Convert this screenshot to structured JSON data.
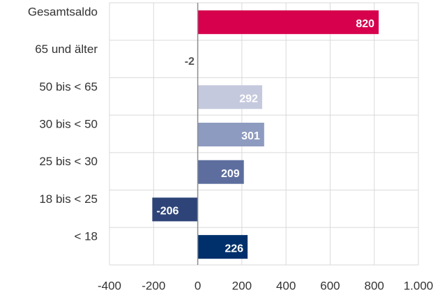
{
  "chart_data": {
    "type": "barh",
    "categories": [
      "Gesamtsaldo",
      "65 und älter",
      "50 bis < 65",
      "30 bis < 50",
      "25 bis < 30",
      "18 bis < 25",
      "< 18"
    ],
    "values": [
      820,
      -2,
      292,
      301,
      209,
      -206,
      226
    ],
    "colors": [
      "#d6004c",
      "#dfe1ea",
      "#c5c9dd",
      "#8e9bc0",
      "#5d6e9e",
      "#2e4478",
      "#00306b"
    ],
    "xlim": [
      -400,
      1000
    ],
    "xticks": [
      -400,
      -200,
      0,
      200,
      400,
      600,
      800,
      {
        "value": 1000,
        "label": "1.000"
      }
    ],
    "grid": true
  }
}
